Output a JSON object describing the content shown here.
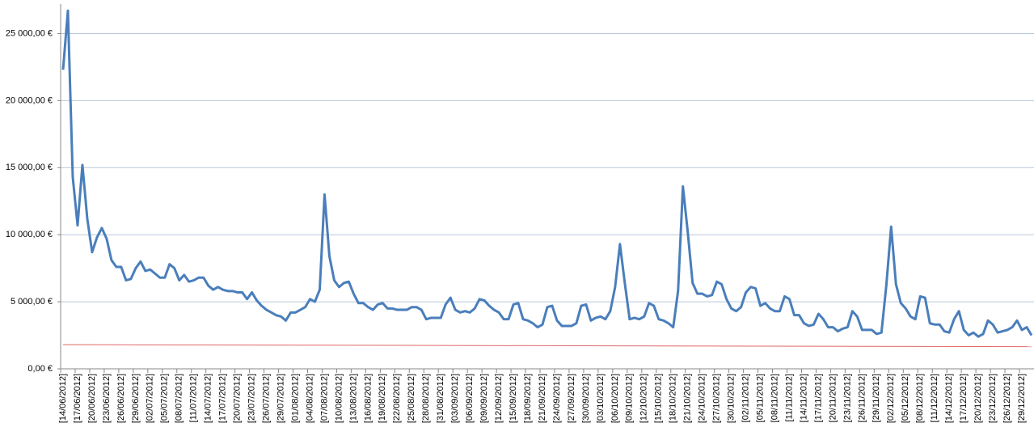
{
  "chart_data": {
    "type": "line",
    "categories": [
      "[14/06/2012]",
      null,
      null,
      "[17/06/2012]",
      null,
      null,
      "[20/06/2012]",
      null,
      null,
      "[23/06/2012]",
      null,
      null,
      "[26/06/2012]",
      null,
      null,
      "[29/06/2012]",
      null,
      null,
      "[02/07/2012]",
      null,
      null,
      "[05/07/2012]",
      null,
      null,
      "[08/07/2012]",
      null,
      null,
      "[11/07/2012]",
      null,
      null,
      "[14/07/2012]",
      null,
      null,
      "[17/07/2012]",
      null,
      null,
      "[20/07/2012]",
      null,
      null,
      "[23/07/2012]",
      null,
      null,
      "[26/07/2012]",
      null,
      null,
      "[29/07/2012]",
      null,
      null,
      "[01/08/2012]",
      null,
      null,
      "[04/08/2012]",
      null,
      null,
      "[07/08/2012]",
      null,
      null,
      "[10/08/2012]",
      null,
      null,
      "[13/08/2012]",
      null,
      null,
      "[16/08/2012]",
      null,
      null,
      "[19/08/2012]",
      null,
      null,
      "[22/08/2012]",
      null,
      null,
      "[25/08/2012]",
      null,
      null,
      "[28/08/2012]",
      null,
      null,
      "[31/08/2012]",
      null,
      null,
      "[03/09/2012]",
      null,
      null,
      "[06/09/2012]",
      null,
      null,
      "[09/09/2012]",
      null,
      null,
      "[12/09/2012]",
      null,
      null,
      "[15/09/2012]",
      null,
      null,
      "[18/09/2012]",
      null,
      null,
      "[21/09/2012]",
      null,
      null,
      "[24/09/2012]",
      null,
      null,
      "[27/09/2012]",
      null,
      null,
      "[30/09/2012]",
      null,
      null,
      "[03/10/2012]",
      null,
      null,
      "[06/10/2012]",
      null,
      null,
      "[09/10/2012]",
      null,
      null,
      "[12/10/2012]",
      null,
      null,
      "[15/10/2012]",
      null,
      null,
      "[18/10/2012]",
      null,
      null,
      "[21/10/2012]",
      null,
      null,
      "[24/10/2012]",
      null,
      null,
      "[27/10/2012]",
      null,
      null,
      "[30/10/2012]",
      null,
      null,
      "[02/11/2012]",
      null,
      null,
      "[05/11/2012]",
      null,
      null,
      "[08/11/2012]",
      null,
      null,
      "[11/11/2012]",
      null,
      null,
      "[14/11/2012]",
      null,
      null,
      "[17/11/2012]",
      null,
      null,
      "[20/11/2012]",
      null,
      null,
      "[23/11/2012]",
      null,
      null,
      "[26/11/2012]",
      null,
      null,
      "[29/11/2012]",
      null,
      null,
      "[02/12/2012]",
      null,
      null,
      "[05/12/2012]",
      null,
      null,
      "[08/12/2012]",
      null,
      null,
      "[11/12/2012]",
      null,
      null,
      "[14/12/2012]",
      null,
      null,
      "[17/12/2012]",
      null,
      null,
      "[20/12/2012]",
      null,
      null,
      "[23/12/2012]",
      null,
      null,
      "[26/12/2012]",
      null,
      null,
      "[29/12/2012]",
      null,
      null
    ],
    "series": [
      {
        "color": "#4a7ebb",
        "values": [
          22300,
          26700,
          14300,
          10700,
          15200,
          11200,
          8700,
          9800,
          10500,
          9700,
          8100,
          7600,
          7600,
          6600,
          6700,
          7500,
          8000,
          7300,
          7400,
          7100,
          6800,
          6800,
          7800,
          7500,
          6600,
          7000,
          6500,
          6600,
          6800,
          6800,
          6200,
          5900,
          6100,
          5900,
          5800,
          5800,
          5700,
          5700,
          5200,
          5700,
          5100,
          4700,
          4400,
          4200,
          4000,
          3900,
          3600,
          4200,
          4200,
          4400,
          4600,
          5200,
          5000,
          5900,
          13000,
          8400,
          6600,
          6100,
          6400,
          6500,
          5600,
          4900,
          4900,
          4600,
          4400,
          4800,
          4900,
          4500,
          4500,
          4400,
          4400,
          4400,
          4600,
          4600,
          4400,
          3700,
          3800,
          3800,
          3800,
          4800,
          5300,
          4400,
          4200,
          4300,
          4200,
          4500,
          5200,
          5100,
          4700,
          4400,
          4200,
          3700,
          3700,
          4800,
          4900,
          3700,
          3600,
          3400,
          3100,
          3300,
          4600,
          4700,
          3600,
          3200,
          3200,
          3200,
          3400,
          4700,
          4800,
          3600,
          3800,
          3900,
          3700,
          4300,
          6100,
          9300,
          6400,
          3700,
          3800,
          3700,
          3900,
          4900,
          4700,
          3700,
          3600,
          3400,
          3100,
          5800,
          13600,
          10200,
          6400,
          5600,
          5600,
          5400,
          5500,
          6500,
          6300,
          5200,
          4500,
          4300,
          4600,
          5700,
          6100,
          6000,
          4700,
          4900,
          4500,
          4300,
          4300,
          5400,
          5200,
          4000,
          4000,
          3400,
          3200,
          3300,
          4100,
          3700,
          3100,
          3100,
          2800,
          3000,
          3100,
          4300,
          3900,
          2900,
          2900,
          2900,
          2600,
          2700,
          6200,
          10600,
          6300,
          4900,
          4500,
          3900,
          3700,
          5400,
          5300,
          3400,
          3300,
          3300,
          2800,
          2700,
          3700,
          4300,
          2900,
          2500,
          2700,
          2400,
          2600,
          3600,
          3300,
          2700,
          2800,
          2900,
          3100,
          3600,
          2900,
          3100,
          2500
        ]
      }
    ],
    "trendline": {
      "color": "#e06666",
      "start": 1800,
      "end": 1650
    },
    "ylim": [
      0,
      27200
    ],
    "yticks": [
      {
        "value": 0,
        "label": "0,00 €"
      },
      {
        "value": 5000,
        "label": "5 000,00 €"
      },
      {
        "value": 10000,
        "label": "10 000,00 €"
      },
      {
        "value": 15000,
        "label": "15 000,00 €"
      },
      {
        "value": 20000,
        "label": "20 000,00 €"
      },
      {
        "value": 25000,
        "label": "25 000,00 €"
      }
    ],
    "grid": true
  }
}
